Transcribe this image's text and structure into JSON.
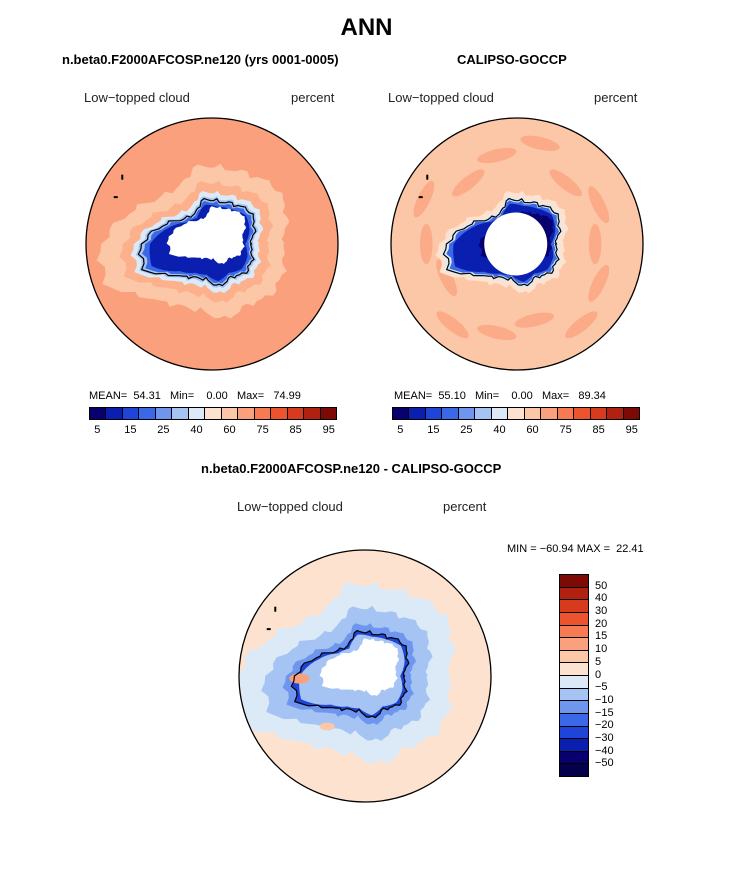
{
  "title": "ANN",
  "chart_data": [
    {
      "type": "heatmap",
      "projection": "south polar stereographic",
      "title": "n.beta0.F2000AFCOSP.ne120 (yrs 0001-0005)",
      "variable": "Low−topped cloud",
      "units": "percent",
      "stats": {
        "mean": "54.31",
        "min": "0.00",
        "max": "74.99",
        "label": "MEAN=  54.31   Min=    0.00   Max=   74.99"
      },
      "colorbar_ticks": [
        "5",
        "15",
        "25",
        "40",
        "60",
        "75",
        "85",
        "95"
      ],
      "field": {
        "ocean": 65,
        "coast_band": 25,
        "ice_sheet": 10,
        "interior": 0
      }
    },
    {
      "type": "heatmap",
      "projection": "south polar stereographic",
      "title": "CALIPSO-GOCCP",
      "variable": "Low−topped cloud",
      "units": "percent",
      "stats": {
        "mean": "55.10",
        "min": "0.00",
        "max": "89.34",
        "label": "MEAN=  55.10   Min=    0.00   Max=   89.34"
      },
      "colorbar_ticks": [
        "5",
        "15",
        "25",
        "40",
        "60",
        "75",
        "85",
        "95"
      ],
      "field": {
        "ocean": 62,
        "coast_band": 40,
        "ice_sheet": 5,
        "interior": 0
      }
    },
    {
      "type": "heatmap",
      "projection": "south polar stereographic",
      "title": "n.beta0.F2000AFCOSP.ne120 - CALIPSO-GOCCP",
      "variable": "Low−topped cloud",
      "units": "percent",
      "stats": {
        "min": "-60.94",
        "max": "22.41",
        "label": "MIN = −60.94 MAX =  22.41"
      },
      "colorbar_ticks": [
        "50",
        "40",
        "30",
        "20",
        "15",
        "10",
        "5",
        "0",
        "−5",
        "−10",
        "−15",
        "−20",
        "−30",
        "−40",
        "−50"
      ]
    }
  ],
  "colors": {
    "abs_scale": [
      "#08006e",
      "#0a1fb0",
      "#1f45d8",
      "#3a68e6",
      "#6e96ee",
      "#a6c4f3",
      "#dceaf8",
      "#fde3cf",
      "#fcc7a6",
      "#fba07c",
      "#f77a53",
      "#ee5330",
      "#d83a1d",
      "#b0210f",
      "#7e0a06"
    ],
    "diff_scale": [
      "#7e0a06",
      "#b0210f",
      "#d83a1d",
      "#ee5330",
      "#f77a53",
      "#fba07c",
      "#fcc7a6",
      "#fde3cf",
      "#dceaf8",
      "#a6c4f3",
      "#6e96ee",
      "#3a68e6",
      "#1f45d8",
      "#0a1fb0",
      "#08006e",
      "#04004a"
    ]
  }
}
